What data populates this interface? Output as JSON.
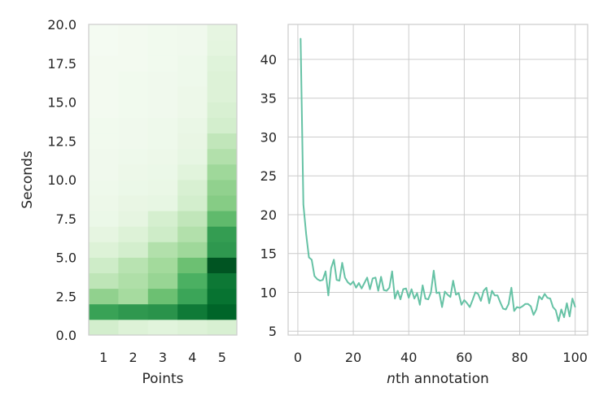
{
  "chart_data": [
    {
      "type": "heatmap",
      "xlabel": "Points",
      "ylabel": "Seconds",
      "x_categories": [
        "1",
        "2",
        "3",
        "4",
        "5"
      ],
      "ylim": [
        0.0,
        20.0
      ],
      "y_ticks": [
        "0.0",
        "2.5",
        "5.0",
        "7.5",
        "10.0",
        "12.5",
        "15.0",
        "17.5",
        "20.0"
      ],
      "y_bin_edges": [
        0.0,
        1.0,
        2.0,
        3.0,
        4.0,
        5.0,
        6.0,
        7.0,
        8.0,
        9.0,
        10.0,
        11.0,
        12.0,
        13.0,
        14.0,
        15.0,
        16.0,
        17.0,
        18.0,
        19.0,
        20.0
      ],
      "colormap": "Greens",
      "grid": false,
      "intensity": [
        [
          0.2,
          0.16,
          0.14,
          0.16,
          0.18
        ],
        [
          0.66,
          0.7,
          0.72,
          0.82,
          0.9
        ],
        [
          0.42,
          0.36,
          0.52,
          0.65,
          0.85
        ],
        [
          0.28,
          0.33,
          0.4,
          0.6,
          0.83
        ],
        [
          0.22,
          0.3,
          0.37,
          0.52,
          0.95
        ],
        [
          0.16,
          0.2,
          0.32,
          0.38,
          0.7
        ],
        [
          0.12,
          0.16,
          0.22,
          0.32,
          0.68
        ],
        [
          0.08,
          0.12,
          0.19,
          0.27,
          0.55
        ],
        [
          0.07,
          0.1,
          0.11,
          0.2,
          0.45
        ],
        [
          0.06,
          0.08,
          0.09,
          0.18,
          0.42
        ],
        [
          0.05,
          0.07,
          0.08,
          0.14,
          0.38
        ],
        [
          0.05,
          0.06,
          0.07,
          0.11,
          0.32
        ],
        [
          0.04,
          0.05,
          0.06,
          0.1,
          0.27
        ],
        [
          0.04,
          0.05,
          0.06,
          0.09,
          0.2
        ],
        [
          0.03,
          0.04,
          0.05,
          0.07,
          0.18
        ],
        [
          0.03,
          0.04,
          0.05,
          0.07,
          0.16
        ],
        [
          0.03,
          0.04,
          0.05,
          0.06,
          0.16
        ],
        [
          0.03,
          0.03,
          0.04,
          0.06,
          0.15
        ],
        [
          0.02,
          0.03,
          0.04,
          0.05,
          0.13
        ],
        [
          0.02,
          0.03,
          0.04,
          0.05,
          0.12
        ]
      ]
    },
    {
      "type": "line",
      "xlabel_prefix": "n",
      "xlabel_suffix": "th annotation",
      "ylabel": "",
      "xlim": [
        -3.5,
        104.5
      ],
      "ylim": [
        4.5,
        44.5
      ],
      "x_ticks": [
        "0",
        "20",
        "40",
        "60",
        "80",
        "100"
      ],
      "y_ticks": [
        "5",
        "10",
        "15",
        "20",
        "25",
        "30",
        "35",
        "40"
      ],
      "grid": true,
      "line_color": "#66c2a5",
      "series": [
        {
          "x": [
            1,
            2,
            3,
            4,
            5,
            6,
            7,
            8,
            9,
            10,
            11,
            12,
            13,
            14,
            15,
            16,
            17,
            18,
            19,
            20,
            21,
            22,
            23,
            24,
            25,
            26,
            27,
            28,
            29,
            30,
            31,
            32,
            33,
            34,
            35,
            36,
            37,
            38,
            39,
            40,
            41,
            42,
            43,
            44,
            45,
            46,
            47,
            48,
            49,
            50,
            51,
            52,
            53,
            54,
            55,
            56,
            57,
            58,
            59,
            60,
            61,
            62,
            63,
            64,
            65,
            66,
            67,
            68,
            69,
            70,
            71,
            72,
            73,
            74,
            75,
            76,
            77,
            78,
            79,
            80,
            81,
            82,
            83,
            84,
            85,
            86,
            87,
            88,
            89,
            90,
            91,
            92,
            93,
            94,
            95,
            96,
            97,
            98,
            99,
            100
          ],
          "y": [
            42.7,
            21.3,
            17.5,
            14.5,
            14.2,
            12.1,
            11.7,
            11.5,
            11.6,
            12.7,
            9.6,
            13.1,
            14.2,
            11.6,
            11.5,
            13.8,
            11.9,
            11.3,
            11.0,
            11.4,
            10.6,
            11.2,
            10.5,
            11.2,
            11.9,
            10.4,
            11.8,
            11.9,
            10.2,
            12.0,
            10.3,
            10.2,
            10.6,
            12.7,
            9.2,
            10.2,
            9.1,
            10.4,
            10.5,
            9.3,
            10.4,
            9.2,
            9.9,
            8.4,
            10.9,
            9.2,
            9.1,
            10.0,
            12.8,
            9.9,
            10.0,
            8.1,
            10.1,
            9.7,
            9.4,
            11.5,
            9.7,
            9.9,
            8.4,
            9.0,
            8.6,
            8.1,
            9.0,
            10.0,
            9.8,
            8.9,
            10.2,
            10.6,
            8.6,
            10.2,
            9.6,
            9.6,
            8.7,
            7.9,
            7.8,
            8.5,
            10.6,
            7.6,
            8.1,
            8.0,
            8.2,
            8.5,
            8.5,
            8.2,
            7.1,
            7.8,
            9.5,
            9.1,
            9.8,
            9.3,
            9.2,
            8.1,
            7.7,
            6.3,
            7.8,
            6.8,
            8.6,
            6.9,
            9.2,
            8.1
          ]
        }
      ]
    }
  ]
}
